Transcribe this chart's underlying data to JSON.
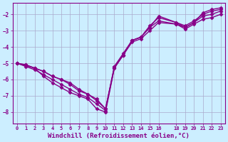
{
  "bg_color": "#cceeff",
  "grid_color": "#aaaacc",
  "line_color": "#880088",
  "marker": "D",
  "markersize": 2.5,
  "linewidth": 1.0,
  "xlabel": "Windchill (Refroidissement éolien,°C)",
  "xlabel_fontsize": 6.5,
  "xlim": [
    -0.5,
    23.5
  ],
  "ylim": [
    -8.7,
    -1.3
  ],
  "yticks": [
    -8,
    -7,
    -6,
    -5,
    -4,
    -3,
    -2
  ],
  "xticks": [
    0,
    1,
    2,
    3,
    4,
    5,
    6,
    7,
    8,
    9,
    10,
    11,
    12,
    13,
    14,
    15,
    16,
    18,
    19,
    20,
    21,
    22,
    23
  ],
  "series": [
    [
      0,
      -5.0
    ],
    [
      1,
      -5.1
    ],
    [
      2,
      -5.3
    ],
    [
      3,
      -5.8
    ],
    [
      4,
      -6.2
    ],
    [
      5,
      -6.5
    ],
    [
      6,
      -6.8
    ],
    [
      7,
      -7.0
    ],
    [
      8,
      -7.2
    ],
    [
      9,
      -7.8
    ],
    [
      10,
      -8.0
    ],
    [
      11,
      -5.3
    ],
    [
      12,
      -4.5
    ],
    [
      13,
      -3.7
    ],
    [
      14,
      -3.5
    ],
    [
      15,
      -3.0
    ],
    [
      16,
      -2.5
    ],
    [
      18,
      -2.6
    ],
    [
      19,
      -2.9
    ],
    [
      20,
      -2.6
    ],
    [
      21,
      -2.3
    ],
    [
      22,
      -2.2
    ],
    [
      23,
      -2.0
    ]
  ],
  "series2": [
    [
      0,
      -5.0
    ],
    [
      1,
      -5.1
    ],
    [
      2,
      -5.3
    ],
    [
      3,
      -5.5
    ],
    [
      4,
      -5.8
    ],
    [
      5,
      -6.0
    ],
    [
      6,
      -6.3
    ],
    [
      7,
      -6.7
    ],
    [
      8,
      -6.9
    ],
    [
      9,
      -7.3
    ],
    [
      10,
      -7.8
    ],
    [
      11,
      -5.3
    ],
    [
      12,
      -4.5
    ],
    [
      13,
      -3.6
    ],
    [
      14,
      -3.4
    ],
    [
      15,
      -2.8
    ],
    [
      16,
      -2.1
    ],
    [
      18,
      -2.5
    ],
    [
      19,
      -2.8
    ],
    [
      20,
      -2.5
    ],
    [
      21,
      -1.9
    ],
    [
      22,
      -1.7
    ],
    [
      23,
      -1.6
    ]
  ],
  "series3": [
    [
      0,
      -5.0
    ],
    [
      2,
      -5.3
    ],
    [
      3,
      -5.5
    ],
    [
      4,
      -5.8
    ],
    [
      5,
      -6.0
    ],
    [
      6,
      -6.2
    ],
    [
      7,
      -6.6
    ],
    [
      8,
      -6.9
    ],
    [
      9,
      -7.2
    ],
    [
      10,
      -7.8
    ],
    [
      11,
      -5.2
    ],
    [
      12,
      -4.4
    ],
    [
      13,
      -3.6
    ],
    [
      14,
      -3.4
    ],
    [
      15,
      -2.7
    ],
    [
      16,
      -2.2
    ],
    [
      18,
      -2.5
    ],
    [
      19,
      -2.7
    ],
    [
      20,
      -2.4
    ],
    [
      21,
      -2.0
    ],
    [
      22,
      -1.8
    ],
    [
      23,
      -1.7
    ]
  ],
  "series4": [
    [
      0,
      -5.0
    ],
    [
      1,
      -5.2
    ],
    [
      2,
      -5.4
    ],
    [
      3,
      -5.7
    ],
    [
      4,
      -6.0
    ],
    [
      5,
      -6.3
    ],
    [
      6,
      -6.6
    ],
    [
      7,
      -6.9
    ],
    [
      8,
      -7.1
    ],
    [
      9,
      -7.5
    ],
    [
      10,
      -7.9
    ],
    [
      11,
      -5.2
    ],
    [
      12,
      -4.5
    ],
    [
      13,
      -3.6
    ],
    [
      14,
      -3.4
    ],
    [
      15,
      -2.8
    ],
    [
      16,
      -2.4
    ],
    [
      18,
      -2.6
    ],
    [
      19,
      -2.8
    ],
    [
      20,
      -2.5
    ],
    [
      21,
      -2.1
    ],
    [
      22,
      -2.0
    ],
    [
      23,
      -1.8
    ]
  ]
}
